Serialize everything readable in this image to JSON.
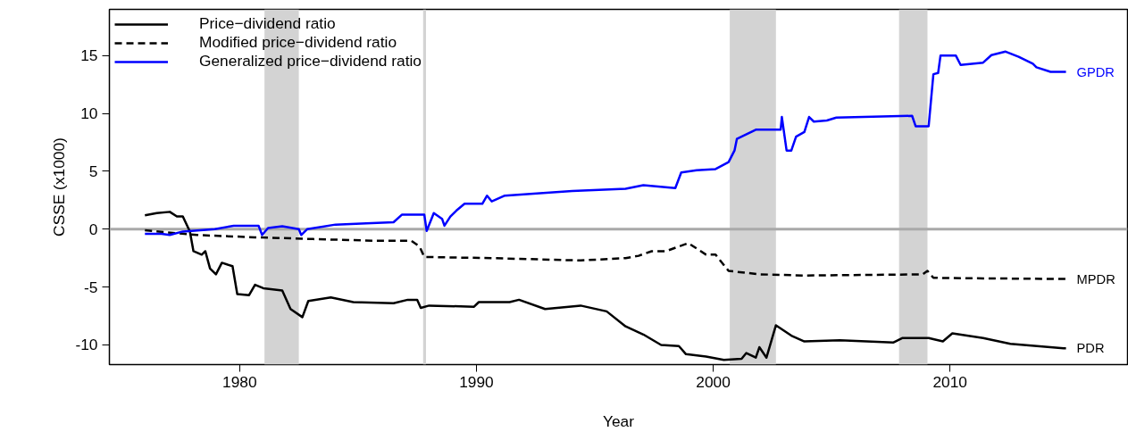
{
  "chart_data": {
    "type": "line",
    "xlabel": "Year",
    "ylabel": "CSSE (x1000)",
    "xlim": [
      1974.5,
      2017.5
    ],
    "ylim": [
      -11.7,
      19
    ],
    "xticks": [
      1980,
      1990,
      2000,
      2010
    ],
    "yticks": [
      -10,
      -5,
      0,
      5,
      10,
      15
    ],
    "grid": false,
    "legend": "top left",
    "marker": "none",
    "series": [
      {
        "name": "Price−dividend ratio",
        "color": "#000000",
        "line_style": "solid",
        "x": [
          1976.0,
          1976.5,
          1977.05,
          1977.35,
          1977.6,
          1977.9,
          1978.05,
          1978.4,
          1978.55,
          1978.75,
          1979.0,
          1979.25,
          1979.7,
          1979.9,
          1980.4,
          1980.65,
          1981.0,
          1981.8,
          1982.15,
          1982.65,
          1982.9,
          1983.85,
          1984.8,
          1986.5,
          1987.1,
          1987.5,
          1987.65,
          1988.0,
          1989.9,
          1990.1,
          1991.4,
          1991.8,
          1992.9,
          1994.4,
          1995.5,
          1996.3,
          1997.05,
          1997.8,
          1998.55,
          1998.85,
          1999.7,
          2000.45,
          2001.2,
          2001.4,
          2001.8,
          2001.95,
          2002.25,
          2002.65,
          2003.3,
          2003.85,
          2005.35,
          2007.6,
          2008.0,
          2009.1,
          2009.7,
          2010.1,
          2011.4,
          2012.55,
          2014.8,
          2014.9
        ],
        "values": [
          1.2,
          1.4,
          1.5,
          1.1,
          1.1,
          -0.2,
          -1.9,
          -2.2,
          -1.9,
          -3.4,
          -3.9,
          -2.9,
          -3.2,
          -5.6,
          -5.7,
          -4.8,
          -5.1,
          -5.3,
          -6.9,
          -7.6,
          -6.2,
          -5.9,
          -6.3,
          -6.4,
          -6.1,
          -6.1,
          -6.8,
          -6.6,
          -6.7,
          -6.3,
          -6.3,
          -6.1,
          -6.9,
          -6.6,
          -7.1,
          -8.4,
          -9.1,
          -10.0,
          -10.1,
          -10.8,
          -11.0,
          -11.3,
          -11.2,
          -10.7,
          -11.1,
          -10.2,
          -11.1,
          -8.3,
          -9.2,
          -9.7,
          -9.6,
          -9.8,
          -9.4,
          -9.4,
          -9.7,
          -9.0,
          -9.4,
          -9.9,
          -10.3,
          -10.3
        ]
      },
      {
        "name": "Modified price−dividend ratio",
        "color": "#000000",
        "line_style": "dashed",
        "x": [
          1976.0,
          1978.2,
          1980.65,
          1983.1,
          1985.75,
          1987.25,
          1987.6,
          1987.8,
          1990.65,
          1994.4,
          1996.3,
          1996.85,
          1997.4,
          1998.0,
          1998.95,
          1999.7,
          2000.1,
          2000.65,
          2001.95,
          2003.85,
          2008.85,
          2009.05,
          2009.3,
          2011.4,
          2014.9
        ],
        "values": [
          -0.1,
          -0.5,
          -0.7,
          -0.85,
          -1.0,
          -1.0,
          -1.5,
          -2.4,
          -2.5,
          -2.7,
          -2.5,
          -2.3,
          -1.9,
          -1.9,
          -1.2,
          -2.2,
          -2.2,
          -3.6,
          -3.9,
          -4.0,
          -3.9,
          -3.6,
          -4.2,
          -4.25,
          -4.3
        ]
      },
      {
        "name": "Generalized price−dividend ratio",
        "color": "#0000ff",
        "line_style": "solid",
        "x": [
          1976.0,
          1976.7,
          1977.05,
          1977.6,
          1978.95,
          1979.75,
          1980.8,
          1980.95,
          1981.2,
          1981.8,
          1982.5,
          1982.6,
          1982.85,
          1984.05,
          1985.35,
          1986.5,
          1986.85,
          1987.8,
          1987.9,
          1988.2,
          1988.55,
          1988.65,
          1988.9,
          1989.15,
          1989.5,
          1990.25,
          1990.45,
          1990.65,
          1991.2,
          1992.55,
          1994.05,
          1996.3,
          1997.05,
          1998.4,
          1998.65,
          1999.3,
          2000.1,
          2000.65,
          2000.9,
          2001.0,
          2001.8,
          2002.85,
          2002.9,
          2003.1,
          2003.3,
          2003.5,
          2003.85,
          2004.05,
          2004.25,
          2004.8,
          2005.2,
          2008.4,
          2008.55,
          2009.1,
          2009.3,
          2009.5,
          2009.6,
          2010.25,
          2010.45,
          2011.4,
          2011.75,
          2012.35,
          2012.9,
          2013.5,
          2013.65,
          2014.25,
          2014.9
        ],
        "values": [
          -0.4,
          -0.4,
          -0.5,
          -0.2,
          0,
          0.3,
          0.3,
          -0.5,
          0.1,
          0.25,
          0,
          -0.5,
          0,
          0.4,
          0.5,
          0.6,
          1.25,
          1.25,
          -0.15,
          1.4,
          0.9,
          0.3,
          1.1,
          1.6,
          2.2,
          2.2,
          2.9,
          2.4,
          2.9,
          3.1,
          3.3,
          3.5,
          3.8,
          3.55,
          4.9,
          5.1,
          5.2,
          5.8,
          6.8,
          7.8,
          8.6,
          8.6,
          9.7,
          6.8,
          6.8,
          8.0,
          8.4,
          9.7,
          9.3,
          9.4,
          9.65,
          9.8,
          8.9,
          8.9,
          13.4,
          13.5,
          15.0,
          15.0,
          14.2,
          14.4,
          15.05,
          15.35,
          14.9,
          14.3,
          14.0,
          13.6,
          13.6
        ]
      }
    ],
    "bands": [
      {
        "axis": "x",
        "from": 1981.05,
        "to": 1982.5,
        "color": "#d3d3d3"
      },
      {
        "axis": "x",
        "from": 1987.75,
        "to": 1987.87,
        "color": "#d3d3d3"
      },
      {
        "axis": "x",
        "from": 2000.7,
        "to": 2002.65,
        "color": "#d3d3d3"
      },
      {
        "axis": "x",
        "from": 2007.85,
        "to": 2009.05,
        "color": "#d3d3d3"
      }
    ],
    "ref_lines": [
      {
        "axis": "y",
        "value": 0,
        "color": "#a9a9a9",
        "line_style": "solid"
      }
    ],
    "annotations": [
      "GPDR",
      "MPDR",
      "PDR"
    ]
  }
}
